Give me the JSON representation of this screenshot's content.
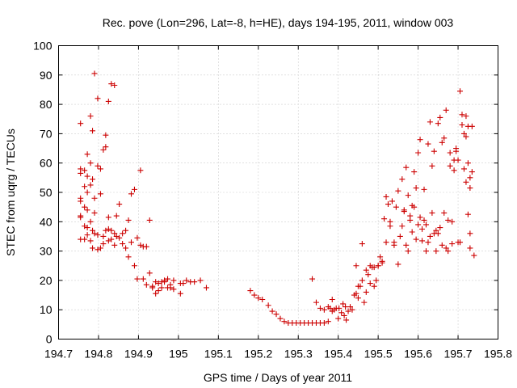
{
  "chart_data": {
    "type": "scatter",
    "title": "Rec. pove (Lon=296, Lat=-8, h=HE), days 194-195, 2011, window 003",
    "xlabel": "GPS time / Days of year 2011",
    "ylabel": "STEC from uqrg / TECUs",
    "xlim": [
      194.7,
      195.8
    ],
    "ylim": [
      0,
      100
    ],
    "xticks": [
      194.7,
      194.8,
      194.9,
      195,
      195.1,
      195.2,
      195.3,
      195.4,
      195.5,
      195.6,
      195.7,
      195.8
    ],
    "xtick_labels": [
      "194.7",
      "194.8",
      "194.9",
      "195",
      "195.1",
      "195.2",
      "195.3",
      "195.4",
      "195.5",
      "195.6",
      "195.7",
      "195.8"
    ],
    "yticks": [
      0,
      10,
      20,
      30,
      40,
      50,
      60,
      70,
      80,
      90,
      100
    ],
    "ytick_labels": [
      "0",
      "10",
      "20",
      "30",
      "40",
      "50",
      "60",
      "70",
      "80",
      "90",
      "100"
    ],
    "grid": true,
    "marker": "+",
    "color": "#cc0000",
    "series": [
      {
        "x": [
          194.755,
          194.755,
          194.755,
          194.755,
          194.755,
          194.755,
          194.755,
          194.755,
          194.765,
          194.765,
          194.765,
          194.765,
          194.765,
          194.772,
          194.772,
          194.772,
          194.772,
          194.772,
          194.772,
          194.78,
          194.78,
          194.78,
          194.78,
          194.78,
          194.785,
          194.785,
          194.785,
          194.785,
          194.79,
          194.79,
          194.79,
          194.79,
          194.798,
          194.798,
          194.798,
          194.798,
          194.805,
          194.805,
          194.805,
          194.812,
          194.812,
          194.812,
          194.818,
          194.818,
          194.818,
          194.825,
          194.825,
          194.825,
          194.825,
          194.832,
          194.832,
          194.832,
          194.84,
          194.84,
          194.84,
          194.845,
          194.845,
          194.852,
          194.852,
          194.86,
          194.86,
          194.868,
          194.868,
          194.875,
          194.875,
          194.882,
          194.882,
          194.89,
          194.89,
          194.897,
          194.897,
          194.905,
          194.905,
          194.912,
          194.912,
          194.92,
          194.92,
          194.928,
          194.928,
          194.935,
          194.935,
          194.943,
          194.943,
          194.95,
          194.95,
          194.958,
          194.958,
          194.965,
          194.965,
          194.973,
          194.973,
          194.98,
          194.98,
          194.988,
          194.988,
          195.005,
          195.005,
          195.012,
          195.02,
          195.03,
          195.04,
          195.055,
          195.07
        ],
        "y": [
          73.5,
          58,
          56.5,
          48,
          41.5,
          42,
          34,
          47,
          57.5,
          45,
          38.5,
          34,
          52,
          63,
          55.5,
          44,
          35.5,
          50,
          38,
          76,
          60,
          52.5,
          40,
          33.5,
          54.5,
          37,
          71,
          31,
          90.5,
          43,
          48,
          36,
          82,
          59,
          35.5,
          30.5,
          49.5,
          31,
          58,
          64.5,
          35,
          32.5,
          69.5,
          65.5,
          37,
          81,
          41.5,
          33.5,
          37.5,
          87,
          34,
          37,
          86.5,
          36,
          32,
          35,
          42,
          34.5,
          46,
          36,
          32.5,
          37,
          31,
          40.5,
          28,
          49.5,
          33,
          51,
          25,
          34.5,
          20.5,
          32,
          57.5,
          31.5,
          20.5,
          31.5,
          18.5,
          22.5,
          40.5,
          17.5,
          18,
          19.5,
          15.5,
          19,
          16.5,
          19.5,
          17.5,
          20,
          19.5,
          17.5,
          20.5,
          17.5,
          18.5,
          20,
          17,
          19,
          15.5,
          19,
          20,
          19.5,
          19.5,
          20,
          17.5
        ]
      },
      {
        "x": [
          195.18,
          195.19,
          195.2,
          195.21,
          195.225,
          195.235,
          195.245,
          195.255,
          195.265,
          195.275,
          195.285,
          195.295,
          195.305,
          195.315,
          195.325,
          195.335,
          195.345,
          195.355,
          195.365,
          195.375,
          195.38,
          195.385,
          195.39,
          195.395,
          195.4,
          195.402,
          195.408,
          195.412,
          195.415,
          195.418,
          195.42,
          195.425,
          195.43,
          195.435,
          195.44,
          195.445
        ],
        "y": [
          16.5,
          15,
          14,
          13.5,
          11.5,
          9.5,
          8.5,
          7,
          6,
          5.5,
          5.5,
          5.5,
          5.5,
          5.5,
          5.5,
          5.5,
          5.5,
          5.5,
          5.5,
          6,
          10.5,
          13.5,
          10,
          10.5,
          7,
          10.5,
          9,
          12,
          8,
          11,
          6.5,
          9.5,
          11,
          10,
          15,
          15.5
        ]
      },
      {
        "x": [
          195.335,
          195.345,
          195.355,
          195.365,
          195.375,
          195.385,
          195.445,
          195.45,
          195.455,
          195.46,
          195.465,
          195.47,
          195.475,
          195.48,
          195.485,
          195.49,
          195.495,
          195.5,
          195.505,
          195.51,
          195.515,
          195.52,
          195.525,
          195.53,
          195.535,
          195.54,
          195.545,
          195.55,
          195.555,
          195.56,
          195.565,
          195.57,
          195.575,
          195.58,
          195.585,
          195.59,
          195.595,
          195.6,
          195.605,
          195.61,
          195.615,
          195.62,
          195.625,
          195.63,
          195.635,
          195.64,
          195.645,
          195.65,
          195.655,
          195.66,
          195.665,
          195.67,
          195.675,
          195.68,
          195.685,
          195.69,
          195.695,
          195.7,
          195.705,
          195.71,
          195.715,
          195.72,
          195.725,
          195.73
        ],
        "y": [
          20.5,
          12.5,
          10.5,
          10,
          11,
          9.5,
          25,
          14,
          18,
          32.5,
          12.5,
          16,
          22,
          19,
          24.5,
          18,
          20,
          25,
          28,
          26.5,
          41,
          48.5,
          46,
          40,
          47,
          33,
          45,
          50.5,
          35,
          38.5,
          43.5,
          32,
          30,
          42,
          36.5,
          57,
          51.5,
          63.5,
          68,
          37.5,
          51,
          39,
          66.5,
          74,
          59,
          64,
          37,
          73.5,
          75.5,
          67,
          43,
          78,
          40.5,
          63.5,
          40,
          57.5,
          65,
          61,
          33,
          73,
          58,
          53.5,
          42.5,
          31
        ]
      },
      {
        "x": [
          195.45,
          195.46,
          195.47,
          195.48,
          195.49,
          195.5,
          195.51,
          195.52,
          195.53,
          195.54,
          195.55,
          195.56,
          195.565,
          195.57,
          195.575,
          195.58,
          195.585,
          195.59,
          195.595,
          195.6,
          195.605,
          195.61,
          195.615,
          195.62,
          195.625,
          195.63,
          195.635,
          195.64,
          195.645,
          195.65,
          195.655,
          195.66,
          195.665,
          195.67,
          195.675,
          195.68,
          195.685,
          195.69,
          195.695,
          195.7,
          195.705,
          195.71,
          195.715,
          195.72,
          195.725,
          195.73
        ],
        "y": [
          18,
          20,
          23.5,
          25,
          24.5,
          25,
          26,
          33,
          38.5,
          32,
          25.5,
          54.5,
          44,
          58.5,
          49,
          40.5,
          45.5,
          45,
          34,
          39,
          41.5,
          33.5,
          40.5,
          30,
          33,
          35,
          43,
          36,
          30,
          36,
          38,
          32,
          68.5,
          31,
          30,
          59,
          32.5,
          61,
          64,
          33,
          84.5,
          76.5,
          70,
          69,
          60,
          36
        ]
      },
      {
        "x": [
          195.72,
          195.725,
          195.73,
          195.73,
          195.735,
          195.735,
          195.74
        ],
        "y": [
          76,
          72.5,
          55,
          51.5,
          57,
          72.5,
          28.5
        ]
      }
    ]
  }
}
